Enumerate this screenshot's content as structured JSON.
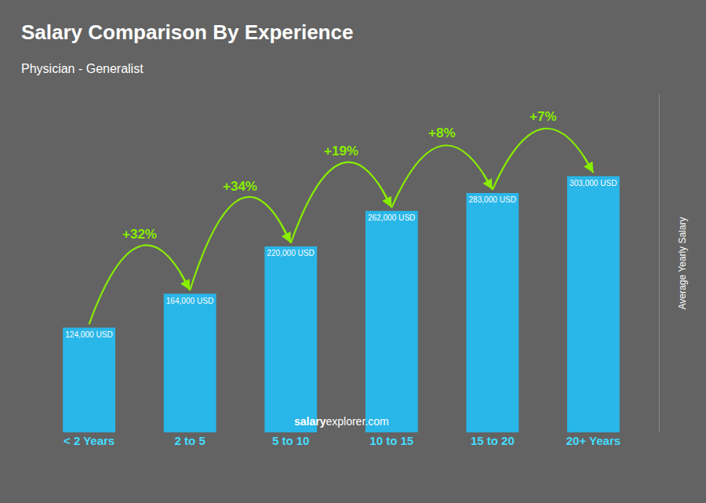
{
  "chart_data": {
    "type": "bar",
    "title": "Salary Comparison By Experience",
    "subtitle": "Physician - Generalist",
    "ylabel": "Average Yearly Salary",
    "categories": [
      "< 2 Years",
      "2 to 5",
      "5 to 10",
      "10 to 15",
      "15 to 20",
      "20+ Years"
    ],
    "values": [
      124000,
      164000,
      220000,
      262000,
      283000,
      303000
    ],
    "value_labels": [
      "124,000 USD",
      "164,000 USD",
      "220,000 USD",
      "262,000 USD",
      "283,000 USD",
      "303,000 USD"
    ],
    "data_labels": true,
    "color": "#29b6e8",
    "annotations": [
      {
        "text": "+32%",
        "color": "#88ee00"
      },
      {
        "text": "+34%",
        "color": "#88ee00"
      },
      {
        "text": "+19%",
        "color": "#88ee00"
      },
      {
        "text": "+8%",
        "color": "#88ee00"
      },
      {
        "text": "+7%",
        "color": "#88ee00"
      }
    ],
    "watermark": [
      "salary",
      "explorer.com"
    ],
    "ylim": [
      0,
      400000
    ],
    "grid": false,
    "tick_labels": "x"
  }
}
